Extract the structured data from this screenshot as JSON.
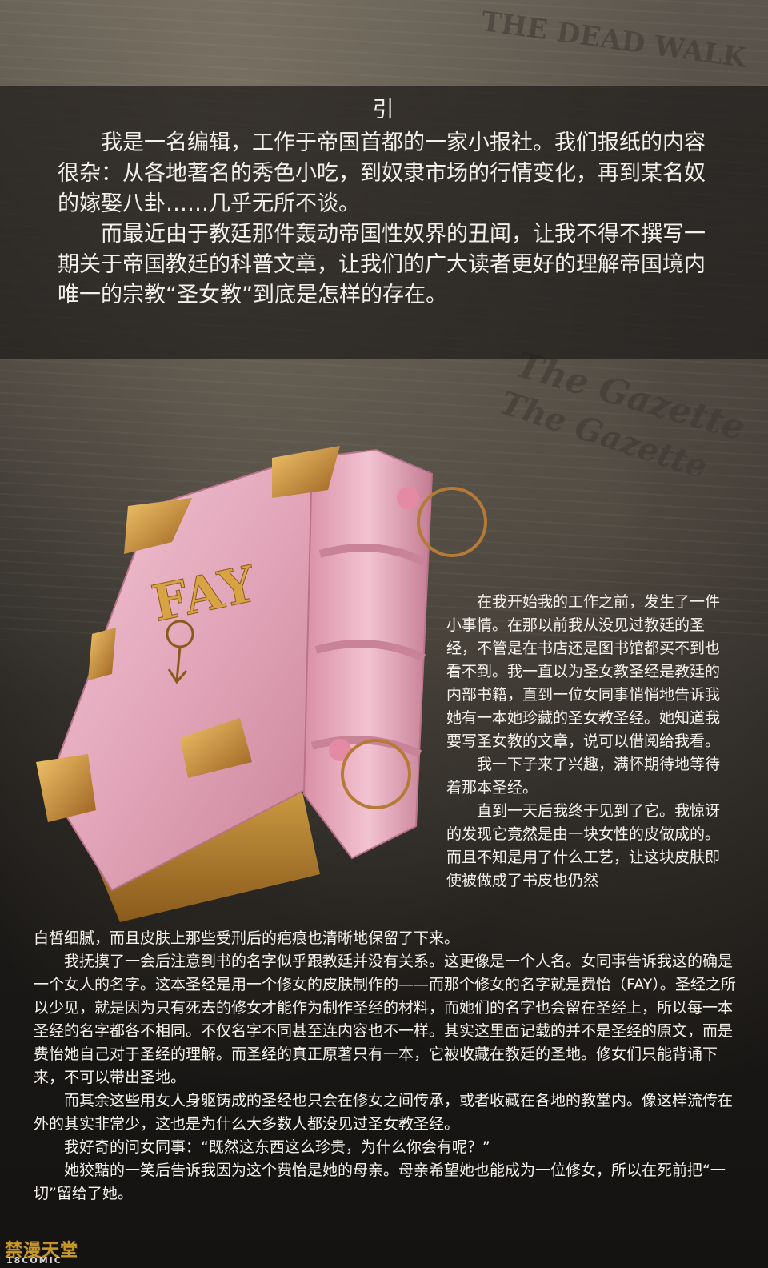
{
  "intro": {
    "title": "引",
    "paragraphs": [
      "我是一名编辑，工作于帝国首都的一家小报社。我们报纸的内容很杂：从各地著名的秀色小吃，到奴隶市场的行情变化，再到某名奴的嫁娶八卦……几乎无所不谈。",
      "而最近由于教廷那件轰动帝国性奴界的丑闻，让我不得不撰写一期关于帝国教廷的科普文章，让我们的广大读者更好的理解帝国境内唯一的宗教“圣女教”到底是怎样的存在。"
    ]
  },
  "book": {
    "cover_title": "FAY",
    "icon": "male-symbol-icon",
    "colors": {
      "cover": "#e7b3c4",
      "gold": "#c8892c",
      "pages": "#b8862e"
    }
  },
  "side_text": {
    "paragraphs": [
      "在我开始我的工作之前，发生了一件小事情。在那以前我从没见过教廷的圣经，不管是在书店还是图书馆都买不到也看不到。我一直以为圣女教圣经是教廷的内部书籍，直到一位女同事悄悄地告诉我她有一本她珍藏的圣女教圣经。她知道我要写圣女教的文章，说可以借阅给我看。",
      "我一下子来了兴趣，满怀期待地等待着那本圣经。",
      "直到一天后我终于见到了它。我惊讶的发现它竟然是由一块女性的皮做成的。而且不知是用了什么工艺，让这块皮肤即使被做成了书皮也仍然"
    ]
  },
  "body_text": {
    "continuation": "白皙细腻，而且皮肤上那些受刑后的疤痕也清晰地保留了下来。",
    "paragraphs": [
      "我抚摸了一会后注意到书的名字似乎跟教廷并没有关系。这更像是一个人名。女同事告诉我这的确是一个女人的名字。这本圣经是用一个修女的皮肤制作的——而那个修女的名字就是费怡（FAY）。圣经之所以少见，就是因为只有死去的修女才能作为制作圣经的材料，而她们的名字也会留在圣经上，所以每一本圣经的名字都各不相同。不仅名字不同甚至连内容也不一样。其实这里面记载的并不是圣经的原文，而是费怡她自己对于圣经的理解。而圣经的真正原著只有一本，它被收藏在教廷的圣地。修女们只能背诵下来，不可以带出圣地。",
      "而其余这些用女人身躯铸成的圣经也只会在修女之间传承，或者收藏在各地的教堂内。像这样流传在外的其实非常少，这也是为什么大多数人都没见过圣女教圣经。",
      "我好奇的问女同事：“既然这东西这么珍贵，为什么你会有呢？”",
      "她狡黠的一笑后告诉我因为这个费怡是她的母亲。母亲希望她也能成为一位修女，所以在死前把“一切”留给了她。"
    ]
  },
  "background_text": [
    "THE DEAD WALK",
    "The Gazette",
    "The Gazette"
  ],
  "watermark": {
    "main": "禁漫天堂",
    "sub": "18COMIC"
  }
}
